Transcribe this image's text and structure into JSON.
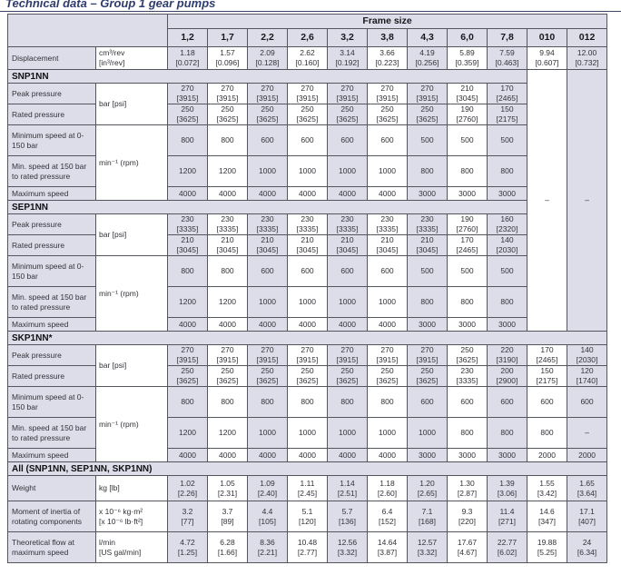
{
  "title": "Technical data – Group 1 gear pumps",
  "na_dash": "–",
  "table": {
    "frame_size_label": "Frame size",
    "columns": [
      "1,2",
      "1,7",
      "2,2",
      "2,6",
      "3,2",
      "3,8",
      "4,3",
      "6,0",
      "7,8",
      "010",
      "012"
    ],
    "labels": {
      "displacement": "Displacement",
      "disp_unit1": "cm³/rev",
      "disp_unit2": "[in³/rev]",
      "peak": "Peak pressure",
      "rated": "Rated pressure",
      "pressure_unit": "bar [psi]",
      "min_low": "Minimum speed at 0-150 bar",
      "min_high": "Min. speed at 150 bar to rated pressure",
      "max": "Maximum speed",
      "speed_unit": "min⁻¹ (rpm)",
      "weight": "Weight",
      "weight_unit": "kg [lb]",
      "moment": "Moment of inertia of rotating components",
      "moment_unit1": "x 10⁻⁶ kg·m²",
      "moment_unit2": "[x 10⁻⁶ lb·ft²]",
      "flow": "Theoretical flow at maximum speed",
      "flow_unit1": "l/min",
      "flow_unit2": "[US gal/min]"
    },
    "displacement_values": [
      [
        "1.18",
        "[0.072]"
      ],
      [
        "1.57",
        "[0.096]"
      ],
      [
        "2.09",
        "[0.128]"
      ],
      [
        "2.62",
        "[0.160]"
      ],
      [
        "3.14",
        "[0.192]"
      ],
      [
        "3.66",
        "[0.223]"
      ],
      [
        "4.19",
        "[0.256]"
      ],
      [
        "5.89",
        "[0.359]"
      ],
      [
        "7.59",
        "[0.463]"
      ],
      [
        "9.94",
        "[0.607]"
      ],
      [
        "12.00",
        "[0.732]"
      ]
    ],
    "sections": [
      {
        "name": "SNP1NN",
        "peak": [
          [
            "270",
            "[3915]"
          ],
          [
            "270",
            "[3915]"
          ],
          [
            "270",
            "[3915]"
          ],
          [
            "270",
            "[3915]"
          ],
          [
            "270",
            "[3915]"
          ],
          [
            "270",
            "[3915]"
          ],
          [
            "270",
            "[3915]"
          ],
          [
            "210",
            "[3045]"
          ],
          [
            "170",
            "[2465]"
          ]
        ],
        "rated": [
          [
            "250",
            "[3625]"
          ],
          [
            "250",
            "[3625]"
          ],
          [
            "250",
            "[3625]"
          ],
          [
            "250",
            "[3625]"
          ],
          [
            "250",
            "[3625]"
          ],
          [
            "250",
            "[3625]"
          ],
          [
            "250",
            "[3625]"
          ],
          [
            "190",
            "[2760]"
          ],
          [
            "150",
            "[2175]"
          ]
        ],
        "min_low": [
          "800",
          "800",
          "600",
          "600",
          "600",
          "600",
          "500",
          "500",
          "500"
        ],
        "min_high": [
          "1200",
          "1200",
          "1000",
          "1000",
          "1000",
          "1000",
          "800",
          "800",
          "800"
        ],
        "max": [
          "4000",
          "4000",
          "4000",
          "4000",
          "4000",
          "4000",
          "3000",
          "3000",
          "3000"
        ]
      },
      {
        "name": "SEP1NN",
        "peak": [
          [
            "230",
            "[3335]"
          ],
          [
            "230",
            "[3335]"
          ],
          [
            "230",
            "[3335]"
          ],
          [
            "230",
            "[3335]"
          ],
          [
            "230",
            "[3335]"
          ],
          [
            "230",
            "[3335]"
          ],
          [
            "230",
            "[3335]"
          ],
          [
            "190",
            "[2760]"
          ],
          [
            "160",
            "[2320]"
          ]
        ],
        "rated": [
          [
            "210",
            "[3045]"
          ],
          [
            "210",
            "[3045]"
          ],
          [
            "210",
            "[3045]"
          ],
          [
            "210",
            "[3045]"
          ],
          [
            "210",
            "[3045]"
          ],
          [
            "210",
            "[3045]"
          ],
          [
            "210",
            "[3045]"
          ],
          [
            "170",
            "[2465]"
          ],
          [
            "140",
            "[2030]"
          ]
        ],
        "min_low": [
          "800",
          "800",
          "600",
          "600",
          "600",
          "600",
          "500",
          "500",
          "500"
        ],
        "min_high": [
          "1200",
          "1200",
          "1000",
          "1000",
          "1000",
          "1000",
          "800",
          "800",
          "800"
        ],
        "max": [
          "4000",
          "4000",
          "4000",
          "4000",
          "4000",
          "4000",
          "3000",
          "3000",
          "3000"
        ]
      },
      {
        "name": "SKP1NN*",
        "peak": [
          [
            "270",
            "[3915]"
          ],
          [
            "270",
            "[3915]"
          ],
          [
            "270",
            "[3915]"
          ],
          [
            "270",
            "[3915]"
          ],
          [
            "270",
            "[3915]"
          ],
          [
            "270",
            "[3915]"
          ],
          [
            "270",
            "[3915]"
          ],
          [
            "250",
            "[3625]"
          ],
          [
            "220",
            "[3190]"
          ],
          [
            "170",
            "[2465]"
          ],
          [
            "140",
            "[2030]"
          ]
        ],
        "rated": [
          [
            "250",
            "[3625]"
          ],
          [
            "250",
            "[3625]"
          ],
          [
            "250",
            "[3625]"
          ],
          [
            "250",
            "[3625]"
          ],
          [
            "250",
            "[3625]"
          ],
          [
            "250",
            "[3625]"
          ],
          [
            "250",
            "[3625]"
          ],
          [
            "230",
            "[3335]"
          ],
          [
            "200",
            "[2900]"
          ],
          [
            "150",
            "[2175]"
          ],
          [
            "120",
            "[1740]"
          ]
        ],
        "min_low": [
          "800",
          "800",
          "800",
          "800",
          "800",
          "800",
          "600",
          "600",
          "600",
          "600",
          "600"
        ],
        "min_high": [
          "1200",
          "1200",
          "1000",
          "1000",
          "1000",
          "1000",
          "1000",
          "800",
          "800",
          "800",
          "–"
        ],
        "max": [
          "4000",
          "4000",
          "4000",
          "4000",
          "4000",
          "4000",
          "3000",
          "3000",
          "3000",
          "2000",
          "2000"
        ]
      }
    ],
    "all_section": {
      "name": "All (SNP1NN, SEP1NN, SKP1NN)",
      "weight": [
        [
          "1.02",
          "[2.26]"
        ],
        [
          "1.05",
          "[2.31]"
        ],
        [
          "1.09",
          "[2.40]"
        ],
        [
          "1.11",
          "[2.45]"
        ],
        [
          "1.14",
          "[2.51]"
        ],
        [
          "1.18",
          "[2.60]"
        ],
        [
          "1.20",
          "[2.65]"
        ],
        [
          "1.30",
          "[2.87]"
        ],
        [
          "1.39",
          "[3.06]"
        ],
        [
          "1.55",
          "[3.42]"
        ],
        [
          "1.65",
          "[3.64]"
        ]
      ],
      "moment": [
        [
          "3.2",
          "[77]"
        ],
        [
          "3.7",
          "[89]"
        ],
        [
          "4.4",
          "[105]"
        ],
        [
          "5.1",
          "[120]"
        ],
        [
          "5.7",
          "[136]"
        ],
        [
          "6.4",
          "[152]"
        ],
        [
          "7.1",
          "[168]"
        ],
        [
          "9.3",
          "[220]"
        ],
        [
          "11.4",
          "[271]"
        ],
        [
          "14.6",
          "[347]"
        ],
        [
          "17.1",
          "[407]"
        ]
      ],
      "flow": [
        [
          "4.72",
          "[1.25]"
        ],
        [
          "6.28",
          "[1.66]"
        ],
        [
          "8.36",
          "[2.21]"
        ],
        [
          "10.48",
          "[2.77]"
        ],
        [
          "12.56",
          "[3.32]"
        ],
        [
          "14.64",
          "[3.87]"
        ],
        [
          "12.57",
          "[3.32]"
        ],
        [
          "17.67",
          "[4.67]"
        ],
        [
          "22.77",
          "[6.02]"
        ],
        [
          "19.88",
          "[5.25]"
        ],
        [
          "24",
          "[6.34]"
        ]
      ]
    }
  }
}
